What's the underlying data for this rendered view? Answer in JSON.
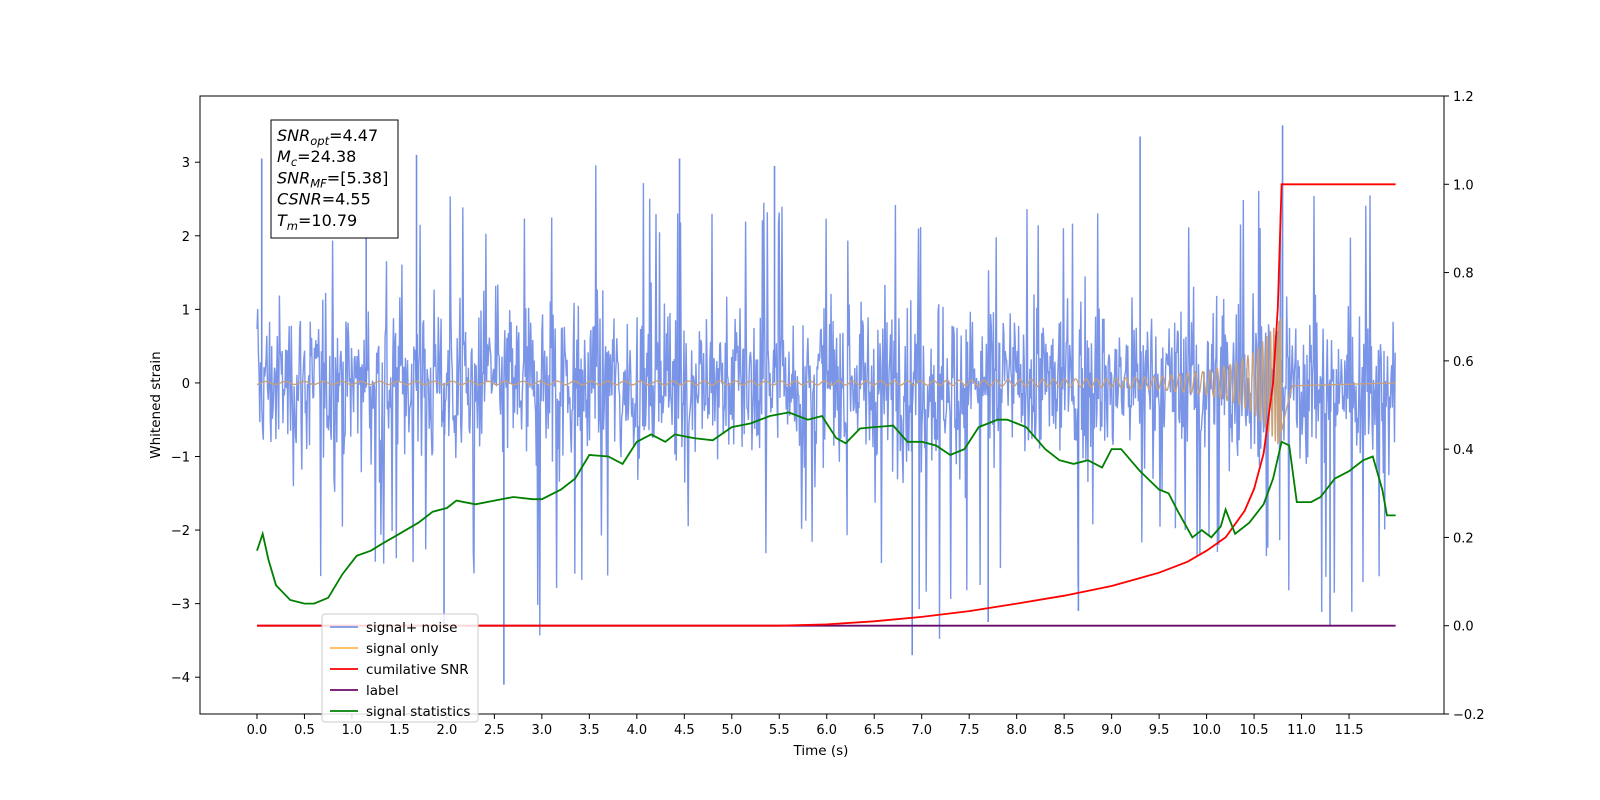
{
  "chart_data": {
    "type": "line",
    "title": "",
    "xlabel": "Time (s)",
    "ylabel": "Whitened strain",
    "y2label": "",
    "xlim": [
      -0.6,
      12.5
    ],
    "ylim": [
      -4.5,
      3.9
    ],
    "y2lim": [
      -0.2,
      1.2
    ],
    "xticks": [
      "0.0",
      "0.5",
      "1.0",
      "1.5",
      "2.0",
      "2.5",
      "3.0",
      "3.5",
      "4.0",
      "4.5",
      "5.0",
      "5.5",
      "6.0",
      "6.5",
      "7.0",
      "7.5",
      "8.0",
      "8.5",
      "9.0",
      "9.5",
      "10.0",
      "10.5",
      "11.0",
      "11.5"
    ],
    "yticks": [
      "3",
      "2",
      "1",
      "0",
      "−1",
      "−2",
      "−3",
      "−4"
    ],
    "y2ticks": [
      "1.2",
      "1.0",
      "0.8",
      "0.6",
      "0.4",
      "0.2",
      "0.0",
      "−0.2"
    ],
    "annotation": {
      "lines": [
        {
          "base": "SNR",
          "sub": "opt",
          "rest": "=4.47"
        },
        {
          "base": "M",
          "sub": "c",
          "rest": "=24.38"
        },
        {
          "base": "SNR",
          "sub": "MF",
          "rest": "=[5.38]"
        },
        {
          "base": "CSNR",
          "sub": "",
          "rest": "=4.55"
        },
        {
          "base": "T",
          "sub": "m",
          "rest": "=10.79"
        }
      ]
    },
    "legend": {
      "position": "lower-left",
      "entries": [
        {
          "label": "signal+ noise",
          "color": "#7a94e8"
        },
        {
          "label": "signal only",
          "color": "#ffb84d"
        },
        {
          "label": "cumilative SNR",
          "color": "#ff0000"
        },
        {
          "label": "label",
          "color": "#6a0a6a"
        },
        {
          "label": "signal statistics",
          "color": "#008000"
        }
      ]
    },
    "series": [
      {
        "name": "signal+ noise",
        "color": "#6f8ce6",
        "axis": "left",
        "x_range": [
          0.0,
          11.99
        ],
        "envelope_high": [
          2.4,
          1.6,
          2.3,
          1.9,
          3.0,
          2.4,
          2.6,
          3.1,
          2.8,
          2.6,
          2.4,
          2.6,
          2.3,
          2.9,
          2.2,
          2.1,
          2.3,
          2.6,
          2.8,
          2.4,
          2.6,
          2.7,
          3.0,
          2.4,
          2.8
        ],
        "envelope_low": [
          -2.5,
          -2.9,
          -2.4,
          -2.5,
          -2.3,
          -3.1,
          -4.1,
          -2.7,
          -2.5,
          -2.4,
          -2.6,
          -2.3,
          -2.2,
          -2.6,
          -3.7,
          -3.2,
          -2.4,
          -3.1,
          -2.2,
          -2.5,
          -2.6,
          -2.4,
          -3.2,
          -3.3,
          -2.4
        ],
        "peaks": [
          {
            "x": 0.05,
            "y": 3.05
          },
          {
            "x": 1.15,
            "y": 3.1
          },
          {
            "x": 1.68,
            "y": 3.1
          },
          {
            "x": 1.97,
            "y": -3.3
          },
          {
            "x": 2.6,
            "y": -4.1
          },
          {
            "x": 4.45,
            "y": 3.05
          },
          {
            "x": 5.45,
            "y": 2.95
          },
          {
            "x": 6.9,
            "y": -3.7
          },
          {
            "x": 7.7,
            "y": -3.25
          },
          {
            "x": 8.65,
            "y": -3.1
          },
          {
            "x": 9.3,
            "y": 3.35
          },
          {
            "x": 10.8,
            "y": 3.5
          },
          {
            "x": 11.3,
            "y": -3.3
          }
        ]
      },
      {
        "name": "signal only",
        "color": "#c8a079",
        "axis": "left",
        "x_range": [
          0.0,
          11.99
        ],
        "merger_time": 10.79,
        "amplitude": [
          {
            "x": 0.0,
            "y": 0.02
          },
          {
            "x": 7.0,
            "y": 0.03
          },
          {
            "x": 9.0,
            "y": 0.06
          },
          {
            "x": 9.5,
            "y": 0.09
          },
          {
            "x": 10.0,
            "y": 0.16
          },
          {
            "x": 10.3,
            "y": 0.27
          },
          {
            "x": 10.5,
            "y": 0.42
          },
          {
            "x": 10.7,
            "y": 0.75
          },
          {
            "x": 10.78,
            "y": 0.9
          },
          {
            "x": 10.82,
            "y": 0.6
          },
          {
            "x": 10.9,
            "y": 0.05
          },
          {
            "x": 11.99,
            "y": 0.0
          }
        ]
      },
      {
        "name": "cumilative SNR",
        "color": "#ff0000",
        "axis": "right",
        "points": [
          {
            "x": 0.0,
            "y": 0.0
          },
          {
            "x": 5.5,
            "y": 0.0
          },
          {
            "x": 6.0,
            "y": 0.003
          },
          {
            "x": 6.5,
            "y": 0.01
          },
          {
            "x": 7.0,
            "y": 0.02
          },
          {
            "x": 7.5,
            "y": 0.033
          },
          {
            "x": 8.0,
            "y": 0.05
          },
          {
            "x": 8.5,
            "y": 0.068
          },
          {
            "x": 9.0,
            "y": 0.09
          },
          {
            "x": 9.5,
            "y": 0.12
          },
          {
            "x": 9.8,
            "y": 0.145
          },
          {
            "x": 10.0,
            "y": 0.17
          },
          {
            "x": 10.2,
            "y": 0.2
          },
          {
            "x": 10.4,
            "y": 0.26
          },
          {
            "x": 10.5,
            "y": 0.31
          },
          {
            "x": 10.6,
            "y": 0.39
          },
          {
            "x": 10.7,
            "y": 0.55
          },
          {
            "x": 10.75,
            "y": 0.72
          },
          {
            "x": 10.79,
            "y": 1.0
          },
          {
            "x": 11.99,
            "y": 1.0
          }
        ]
      },
      {
        "name": "label",
        "color": "#6a0a6a",
        "axis": "right",
        "points": [
          {
            "x": 0.0,
            "y": 0.0
          },
          {
            "x": 11.99,
            "y": 0.0
          }
        ]
      },
      {
        "name": "signal statistics",
        "color": "#008000",
        "axis": "left",
        "points": [
          {
            "x": 0.0,
            "y": -2.28
          },
          {
            "x": 0.06,
            "y": -2.05
          },
          {
            "x": 0.12,
            "y": -2.4
          },
          {
            "x": 0.2,
            "y": -2.75
          },
          {
            "x": 0.35,
            "y": -2.95
          },
          {
            "x": 0.5,
            "y": -3.0
          },
          {
            "x": 0.6,
            "y": -3.0
          },
          {
            "x": 0.75,
            "y": -2.92
          },
          {
            "x": 0.9,
            "y": -2.6
          },
          {
            "x": 1.05,
            "y": -2.35
          },
          {
            "x": 1.2,
            "y": -2.28
          },
          {
            "x": 1.3,
            "y": -2.2
          },
          {
            "x": 1.5,
            "y": -2.05
          },
          {
            "x": 1.7,
            "y": -1.9
          },
          {
            "x": 1.85,
            "y": -1.75
          },
          {
            "x": 2.0,
            "y": -1.7
          },
          {
            "x": 2.1,
            "y": -1.6
          },
          {
            "x": 2.3,
            "y": -1.65
          },
          {
            "x": 2.5,
            "y": -1.6
          },
          {
            "x": 2.7,
            "y": -1.55
          },
          {
            "x": 2.9,
            "y": -1.58
          },
          {
            "x": 3.0,
            "y": -1.58
          },
          {
            "x": 3.2,
            "y": -1.45
          },
          {
            "x": 3.35,
            "y": -1.3
          },
          {
            "x": 3.5,
            "y": -0.98
          },
          {
            "x": 3.7,
            "y": -1.0
          },
          {
            "x": 3.85,
            "y": -1.1
          },
          {
            "x": 4.0,
            "y": -0.8
          },
          {
            "x": 4.15,
            "y": -0.7
          },
          {
            "x": 4.3,
            "y": -0.8
          },
          {
            "x": 4.4,
            "y": -0.7
          },
          {
            "x": 4.6,
            "y": -0.75
          },
          {
            "x": 4.8,
            "y": -0.78
          },
          {
            "x": 5.0,
            "y": -0.6
          },
          {
            "x": 5.2,
            "y": -0.55
          },
          {
            "x": 5.4,
            "y": -0.45
          },
          {
            "x": 5.6,
            "y": -0.4
          },
          {
            "x": 5.8,
            "y": -0.5
          },
          {
            "x": 5.95,
            "y": -0.45
          },
          {
            "x": 6.1,
            "y": -0.75
          },
          {
            "x": 6.2,
            "y": -0.82
          },
          {
            "x": 6.35,
            "y": -0.62
          },
          {
            "x": 6.5,
            "y": -0.6
          },
          {
            "x": 6.7,
            "y": -0.58
          },
          {
            "x": 6.85,
            "y": -0.8
          },
          {
            "x": 7.0,
            "y": -0.8
          },
          {
            "x": 7.15,
            "y": -0.85
          },
          {
            "x": 7.3,
            "y": -0.98
          },
          {
            "x": 7.45,
            "y": -0.9
          },
          {
            "x": 7.6,
            "y": -0.6
          },
          {
            "x": 7.8,
            "y": -0.5
          },
          {
            "x": 7.9,
            "y": -0.5
          },
          {
            "x": 8.0,
            "y": -0.55
          },
          {
            "x": 8.1,
            "y": -0.6
          },
          {
            "x": 8.3,
            "y": -0.9
          },
          {
            "x": 8.45,
            "y": -1.05
          },
          {
            "x": 8.6,
            "y": -1.1
          },
          {
            "x": 8.75,
            "y": -1.05
          },
          {
            "x": 8.9,
            "y": -1.15
          },
          {
            "x": 9.0,
            "y": -0.9
          },
          {
            "x": 9.1,
            "y": -0.9
          },
          {
            "x": 9.3,
            "y": -1.2
          },
          {
            "x": 9.5,
            "y": -1.45
          },
          {
            "x": 9.6,
            "y": -1.5
          },
          {
            "x": 9.7,
            "y": -1.75
          },
          {
            "x": 9.85,
            "y": -2.1
          },
          {
            "x": 9.95,
            "y": -2.0
          },
          {
            "x": 10.05,
            "y": -2.1
          },
          {
            "x": 10.15,
            "y": -1.95
          },
          {
            "x": 10.2,
            "y": -1.72
          },
          {
            "x": 10.3,
            "y": -2.05
          },
          {
            "x": 10.45,
            "y": -1.9
          },
          {
            "x": 10.6,
            "y": -1.65
          },
          {
            "x": 10.7,
            "y": -1.3
          },
          {
            "x": 10.79,
            "y": -0.8
          },
          {
            "x": 10.87,
            "y": -0.85
          },
          {
            "x": 10.95,
            "y": -1.62
          },
          {
            "x": 11.1,
            "y": -1.62
          },
          {
            "x": 11.2,
            "y": -1.55
          },
          {
            "x": 11.35,
            "y": -1.3
          },
          {
            "x": 11.5,
            "y": -1.2
          },
          {
            "x": 11.65,
            "y": -1.05
          },
          {
            "x": 11.75,
            "y": -1.0
          },
          {
            "x": 11.85,
            "y": -1.45
          },
          {
            "x": 11.9,
            "y": -1.8
          },
          {
            "x": 11.99,
            "y": -1.8
          }
        ]
      }
    ]
  }
}
